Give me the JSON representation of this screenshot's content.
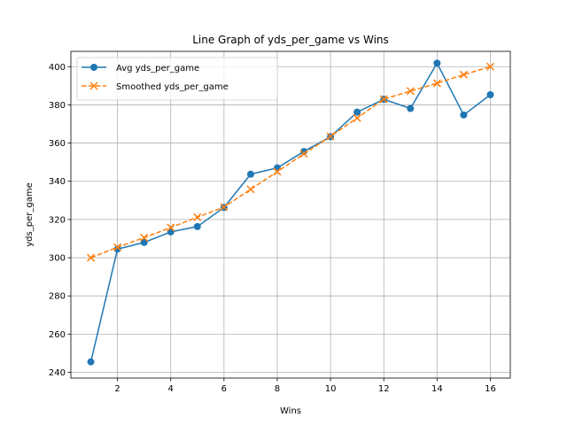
{
  "chart_data": {
    "type": "line",
    "title": "Line Graph of yds_per_game vs Wins",
    "xlabel": "Wins",
    "ylabel": "yds_per_game",
    "xlim": [
      0.25,
      16.75
    ],
    "ylim": [
      237,
      408
    ],
    "xticks": [
      2,
      4,
      6,
      8,
      10,
      12,
      14,
      16
    ],
    "yticks": [
      240,
      260,
      280,
      300,
      320,
      340,
      360,
      380,
      400
    ],
    "grid": true,
    "legend_position": "top-left",
    "x": [
      1,
      2,
      3,
      4,
      5,
      6,
      7,
      8,
      9,
      10,
      11,
      12,
      13,
      14,
      15,
      16
    ],
    "series": [
      {
        "name": "Avg yds_per_game",
        "color": "#1f77b4",
        "style": "solid",
        "marker": "circle",
        "values": [
          245.5,
          304.5,
          308,
          313.5,
          316.3,
          326.3,
          343.7,
          347,
          355.6,
          363.3,
          376.2,
          382.9,
          378.1,
          401.8,
          374.7,
          385.3
        ]
      },
      {
        "name": "Smoothed yds_per_game",
        "color": "#ff7f0e",
        "style": "dashed",
        "marker": "x",
        "values": [
          300,
          305.5,
          310.5,
          315.8,
          321.2,
          326.5,
          335.8,
          345,
          354.4,
          363.5,
          373.1,
          383,
          387.2,
          391.3,
          395.8,
          400
        ]
      }
    ]
  }
}
